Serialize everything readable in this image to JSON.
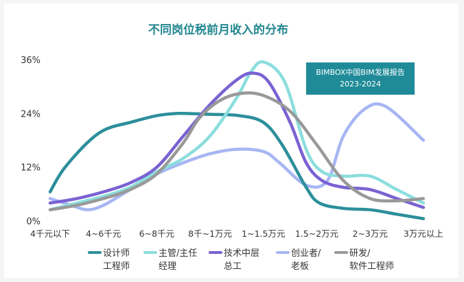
{
  "chart_data": {
    "type": "line",
    "title": "不同岗位税前月收入的分布",
    "categories": [
      "4千元以下",
      "4~6千元",
      "6~8千元",
      "8千~1万元",
      "1~1.5万元",
      "1.5~2万元",
      "2~3万元",
      "3万元以上"
    ],
    "y_ticks": [
      "0%",
      "12%",
      "24%",
      "36%"
    ],
    "ylim": [
      0,
      36
    ],
    "grid": false,
    "legend_position": "bottom",
    "badge": {
      "line1": "BIMBOX中国BIM发展报告",
      "line2": "2023-2024",
      "color": "#1f8b98"
    },
    "series": [
      {
        "name": "设计师/工程师",
        "legend_lines": [
          "设计师",
          "工程师"
        ],
        "color": "#2c8f9b",
        "x": [
          0,
          0.25,
          0.7,
          1.05,
          1.5,
          2.0,
          2.4,
          3.0,
          3.55,
          4.0,
          4.35,
          4.8,
          5.05,
          5.5,
          6.0,
          6.5,
          7.0
        ],
        "values": [
          6.5,
          11.5,
          17.5,
          20.5,
          22.0,
          23.5,
          24.0,
          23.8,
          23.5,
          22.0,
          17.0,
          7.5,
          4.0,
          2.8,
          2.5,
          1.5,
          0.5
        ]
      },
      {
        "name": "主管/主任经理",
        "legend_lines": [
          "主管/主任",
          "经理"
        ],
        "color": "#8bdedd",
        "x": [
          0,
          0.5,
          1.0,
          1.5,
          2.0,
          2.5,
          3.0,
          3.5,
          3.75,
          4.0,
          4.4,
          4.8,
          5.1,
          5.5,
          6.0,
          6.5,
          7.0
        ],
        "values": [
          2.5,
          4.0,
          5.5,
          7.5,
          11.0,
          14.0,
          19.0,
          27.5,
          33.0,
          35.5,
          31.0,
          16.0,
          11.0,
          10.0,
          10.0,
          7.0,
          4.0
        ]
      },
      {
        "name": "技术中层总工",
        "legend_lines": [
          "技术中层",
          "总工"
        ],
        "color": "#7a62d2",
        "x": [
          0,
          0.5,
          1.0,
          1.5,
          2.0,
          2.5,
          3.0,
          3.5,
          3.8,
          4.1,
          4.5,
          4.8,
          5.1,
          5.5,
          6.0,
          6.5,
          7.0
        ],
        "values": [
          4.0,
          5.0,
          6.5,
          8.5,
          12.0,
          19.0,
          26.0,
          31.5,
          33.0,
          31.0,
          22.0,
          13.0,
          9.0,
          7.5,
          7.0,
          5.0,
          3.0
        ]
      },
      {
        "name": "创业者/老板",
        "legend_lines": [
          "创业者/",
          "老板"
        ],
        "color": "#a7b6f3",
        "x": [
          0,
          0.4,
          0.7,
          1.0,
          1.5,
          2.0,
          2.5,
          3.0,
          3.5,
          4.0,
          4.3,
          4.8,
          5.2,
          5.5,
          5.9,
          6.3,
          7.0
        ],
        "values": [
          5.0,
          3.5,
          2.5,
          3.5,
          7.0,
          10.5,
          13.0,
          15.0,
          16.0,
          15.5,
          13.0,
          8.0,
          9.0,
          19.0,
          25.0,
          25.5,
          18.0
        ]
      },
      {
        "name": "研发/软件工程师",
        "legend_lines": [
          "研发/",
          "软件工程师"
        ],
        "color": "#999999",
        "x": [
          0,
          0.5,
          1.0,
          1.5,
          2.0,
          2.5,
          2.8,
          3.2,
          3.6,
          4.0,
          4.5,
          5.0,
          5.5,
          6.0,
          6.5,
          7.0
        ],
        "values": [
          2.5,
          3.5,
          5.0,
          7.0,
          10.5,
          17.5,
          23.0,
          27.0,
          28.5,
          28.0,
          24.5,
          17.0,
          9.0,
          5.0,
          4.5,
          5.0
        ]
      }
    ]
  }
}
